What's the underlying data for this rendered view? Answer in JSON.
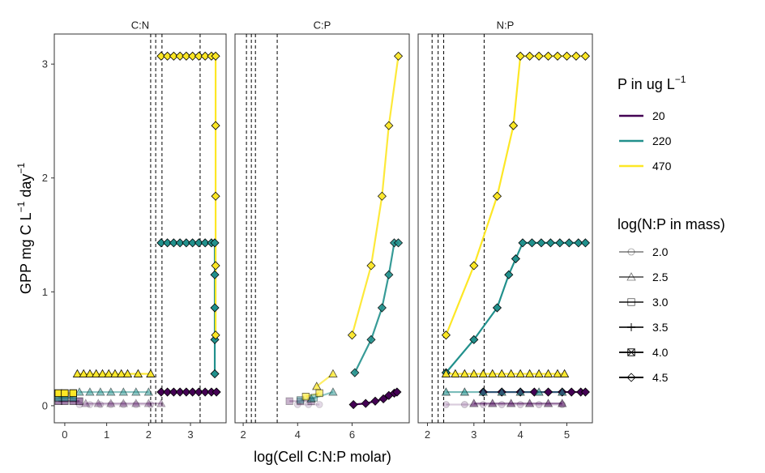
{
  "chart_data": {
    "type": "line",
    "ylabel": "GPP mg C L",
    "ylabel_sup1": "−1",
    "ylabel_mid": " day",
    "ylabel_sup2": "−1",
    "xlabel": "log(Cell C:N:P molar)",
    "ylim": [
      -0.15,
      3.25
    ],
    "yticks": [
      0,
      1,
      2,
      3
    ],
    "grid": false,
    "legend_position": "right",
    "legends": {
      "color": {
        "title": "P in ug L",
        "title_sup": "−1",
        "entries": [
          {
            "label": "20",
            "color": "#440154"
          },
          {
            "label": "220",
            "color": "#21908C"
          },
          {
            "label": "470",
            "color": "#FDE725"
          }
        ]
      },
      "shape": {
        "title": "log(N:P in mass)",
        "entries": [
          {
            "label": "2.0",
            "shape": "circle",
            "alpha": 0.4
          },
          {
            "label": "2.5",
            "shape": "triangle",
            "alpha": 0.55
          },
          {
            "label": "3.0",
            "shape": "square",
            "alpha": 0.7
          },
          {
            "label": "3.5",
            "shape": "plus",
            "alpha": 0.8
          },
          {
            "label": "4.0",
            "shape": "boxx",
            "alpha": 0.9
          },
          {
            "label": "4.5",
            "shape": "diamond",
            "alpha": 1.0
          }
        ]
      }
    },
    "panels": [
      {
        "strip": "C:N",
        "xlim": [
          -0.25,
          3.85
        ],
        "xticks": [
          0,
          1,
          2,
          3
        ],
        "vlines": [
          2.05,
          2.17,
          2.32,
          3.23
        ],
        "series": [
          {
            "group": "20",
            "np": "2.0",
            "color": "#440154",
            "alpha": 0.15,
            "shape": "circle",
            "x": [
              0.35,
              0.6,
              0.85,
              1.1,
              1.4,
              1.7,
              2.05
            ],
            "y": [
              0.01,
              0.01,
              0.01,
              0.01,
              0.01,
              0.01,
              0.01
            ]
          },
          {
            "group": "20",
            "np": "2.5",
            "color": "#440154",
            "alpha": 0.3,
            "shape": "triangle",
            "x": [
              0.5,
              0.8,
              1.1,
              1.4,
              1.7,
              2.0,
              2.3
            ],
            "y": [
              0.02,
              0.02,
              0.02,
              0.02,
              0.02,
              0.02,
              0.02
            ]
          },
          {
            "group": "20",
            "np": "3.0",
            "color": "#440154",
            "alpha": 0.5,
            "shape": "square",
            "x": [
              -0.15,
              0.0,
              0.2,
              0.35
            ],
            "y": [
              0.04,
              0.04,
              0.04,
              0.04
            ]
          },
          {
            "group": "20",
            "np": "4.5",
            "color": "#440154",
            "alpha": 1.0,
            "shape": "diamond",
            "x": [
              2.3,
              2.45,
              2.6,
              2.75,
              2.9,
              3.05,
              3.2,
              3.35,
              3.5,
              3.62
            ],
            "y": [
              0.12,
              0.12,
              0.12,
              0.12,
              0.12,
              0.12,
              0.12,
              0.12,
              0.12,
              0.12
            ]
          },
          {
            "group": "220",
            "np": "2.5",
            "color": "#21908C",
            "alpha": 0.5,
            "shape": "triangle",
            "x": [
              0.35,
              0.6,
              0.85,
              1.1,
              1.4,
              1.7,
              2.0
            ],
            "y": [
              0.12,
              0.12,
              0.12,
              0.12,
              0.12,
              0.12,
              0.12
            ]
          },
          {
            "group": "220",
            "np": "3.0",
            "color": "#21908C",
            "alpha": 0.6,
            "shape": "square",
            "x": [
              -0.15,
              0.0,
              0.2
            ],
            "y": [
              0.07,
              0.07,
              0.07
            ]
          },
          {
            "group": "220",
            "np": "4.5",
            "color": "#21908C",
            "alpha": 1.0,
            "shape": "diamond",
            "x": [
              2.3,
              2.45,
              2.6,
              2.75,
              2.9,
              3.05,
              3.2,
              3.35,
              3.5,
              3.58,
              3.58,
              3.58,
              3.58,
              3.58
            ],
            "y": [
              1.43,
              1.43,
              1.43,
              1.43,
              1.43,
              1.43,
              1.43,
              1.43,
              1.43,
              1.43,
              1.15,
              0.86,
              0.58,
              0.28
            ]
          },
          {
            "group": "470",
            "np": "2.5",
            "color": "#FDE725",
            "alpha": 0.95,
            "shape": "triangle",
            "x": [
              0.3,
              0.45,
              0.6,
              0.75,
              0.9,
              1.05,
              1.2,
              1.35,
              1.5,
              1.75,
              2.05
            ],
            "y": [
              0.28,
              0.28,
              0.28,
              0.28,
              0.28,
              0.28,
              0.28,
              0.28,
              0.28,
              0.28,
              0.28
            ]
          },
          {
            "group": "470",
            "np": "3.0",
            "color": "#FDE725",
            "alpha": 1.0,
            "shape": "square",
            "x": [
              -0.15,
              0.0,
              0.2
            ],
            "y": [
              0.11,
              0.11,
              0.11
            ]
          },
          {
            "group": "470",
            "np": "4.5",
            "color": "#FDE725",
            "alpha": 1.0,
            "shape": "diamond",
            "x": [
              2.3,
              2.45,
              2.6,
              2.75,
              2.9,
              3.05,
              3.2,
              3.35,
              3.5,
              3.6,
              3.6,
              3.6,
              3.6,
              3.6
            ],
            "y": [
              3.07,
              3.07,
              3.07,
              3.07,
              3.07,
              3.07,
              3.07,
              3.07,
              3.07,
              3.07,
              2.46,
              1.84,
              1.23,
              0.62
            ]
          }
        ]
      },
      {
        "strip": "C:P",
        "xlim": [
          1.7,
          8.1
        ],
        "xticks": [
          2,
          4,
          6
        ],
        "vlines": [
          2.12,
          2.3,
          2.45,
          3.25
        ],
        "series": [
          {
            "group": "20",
            "np": "2.0",
            "color": "#440154",
            "alpha": 0.15,
            "shape": "circle",
            "x": [
              4.0,
              4.4,
              4.8
            ],
            "y": [
              0.01,
              0.01,
              0.01
            ]
          },
          {
            "group": "20",
            "np": "3.0",
            "color": "#440154",
            "alpha": 0.3,
            "shape": "square",
            "x": [
              3.7,
              4.1,
              4.5
            ],
            "y": [
              0.04,
              0.04,
              0.04
            ]
          },
          {
            "group": "20",
            "np": "4.5",
            "color": "#440154",
            "alpha": 1.0,
            "shape": "diamond",
            "x": [
              6.05,
              6.5,
              6.85,
              7.15,
              7.35,
              7.55,
              7.65
            ],
            "y": [
              0.01,
              0.02,
              0.04,
              0.06,
              0.09,
              0.11,
              0.12
            ]
          },
          {
            "group": "220",
            "np": "2.5",
            "color": "#21908C",
            "alpha": 0.5,
            "shape": "triangle",
            "x": [
              4.5,
              5.3
            ],
            "y": [
              0.06,
              0.12
            ]
          },
          {
            "group": "220",
            "np": "3.0",
            "color": "#21908C",
            "alpha": 0.4,
            "shape": "square",
            "x": [
              4.1,
              4.6
            ],
            "y": [
              0.05,
              0.07
            ]
          },
          {
            "group": "220",
            "np": "4.5",
            "color": "#21908C",
            "alpha": 0.9,
            "shape": "diamond",
            "x": [
              6.1,
              6.7,
              7.1,
              7.35,
              7.55,
              7.7
            ],
            "y": [
              0.29,
              0.58,
              0.86,
              1.15,
              1.43,
              1.43
            ]
          },
          {
            "group": "470",
            "np": "2.5",
            "color": "#FDE725",
            "alpha": 0.7,
            "shape": "triangle",
            "x": [
              4.7,
              5.3
            ],
            "y": [
              0.17,
              0.28
            ]
          },
          {
            "group": "470",
            "np": "3.0",
            "color": "#FDE725",
            "alpha": 0.6,
            "shape": "square",
            "x": [
              4.3,
              4.8
            ],
            "y": [
              0.08,
              0.11
            ]
          },
          {
            "group": "470",
            "np": "4.5",
            "color": "#FDE725",
            "alpha": 0.9,
            "shape": "diamond",
            "x": [
              6.0,
              6.7,
              7.1,
              7.35,
              7.7
            ],
            "y": [
              0.62,
              1.23,
              1.84,
              2.46,
              3.07
            ]
          }
        ]
      },
      {
        "strip": "N:P",
        "xlim": [
          1.8,
          5.55
        ],
        "xticks": [
          2,
          3,
          4,
          5
        ],
        "vlines": [
          2.1,
          2.23,
          2.35,
          3.22
        ],
        "series": [
          {
            "group": "20",
            "np": "2.0",
            "color": "#440154",
            "alpha": 0.2,
            "shape": "circle",
            "x": [
              2.4,
              2.8,
              3.2,
              3.6,
              4.0,
              4.4,
              4.9
            ],
            "y": [
              0.01,
              0.01,
              0.01,
              0.01,
              0.01,
              0.01,
              0.01
            ]
          },
          {
            "group": "20",
            "np": "2.5",
            "color": "#440154",
            "alpha": 0.5,
            "shape": "triangle",
            "x": [
              3.0,
              3.4,
              3.8,
              4.2,
              4.6,
              4.9
            ],
            "y": [
              0.02,
              0.02,
              0.02,
              0.02,
              0.02,
              0.02
            ]
          },
          {
            "group": "20",
            "np": "4.5",
            "color": "#440154",
            "alpha": 1.0,
            "shape": "diamond",
            "x": [
              3.2,
              3.6,
              4.0,
              4.3,
              4.6,
              4.9,
              5.1,
              5.3,
              5.4
            ],
            "y": [
              0.12,
              0.12,
              0.12,
              0.12,
              0.12,
              0.12,
              0.12,
              0.12,
              0.12
            ]
          },
          {
            "group": "220",
            "np": "2.5",
            "color": "#21908C",
            "alpha": 0.6,
            "shape": "triangle",
            "x": [
              2.4,
              2.8,
              3.2,
              3.6,
              4.0,
              4.4,
              4.9
            ],
            "y": [
              0.12,
              0.12,
              0.12,
              0.12,
              0.12,
              0.12,
              0.12
            ]
          },
          {
            "group": "220",
            "np": "4.5",
            "color": "#21908C",
            "alpha": 1.0,
            "shape": "diamond",
            "x": [
              2.4,
              3.0,
              3.5,
              3.75,
              3.9,
              4.05,
              4.25,
              4.45,
              4.65,
              4.85,
              5.05,
              5.25,
              5.4
            ],
            "y": [
              0.29,
              0.58,
              0.86,
              1.15,
              1.29,
              1.43,
              1.43,
              1.43,
              1.43,
              1.43,
              1.43,
              1.43,
              1.43
            ]
          },
          {
            "group": "470",
            "np": "2.5",
            "color": "#FDE725",
            "alpha": 0.95,
            "shape": "triangle",
            "x": [
              2.4,
              2.6,
              2.8,
              3.0,
              3.2,
              3.4,
              3.6,
              3.8,
              4.0,
              4.2,
              4.4,
              4.6,
              4.8,
              4.95
            ],
            "y": [
              0.28,
              0.28,
              0.28,
              0.28,
              0.28,
              0.28,
              0.28,
              0.28,
              0.28,
              0.28,
              0.28,
              0.28,
              0.28,
              0.28
            ]
          },
          {
            "group": "470",
            "np": "4.5",
            "color": "#FDE725",
            "alpha": 1.0,
            "shape": "diamond",
            "x": [
              2.4,
              3.0,
              3.5,
              3.85,
              4.0,
              4.2,
              4.4,
              4.6,
              4.8,
              5.0,
              5.2,
              5.4
            ],
            "y": [
              0.62,
              1.23,
              1.84,
              2.46,
              3.07,
              3.07,
              3.07,
              3.07,
              3.07,
              3.07,
              3.07,
              3.07
            ]
          }
        ]
      }
    ]
  }
}
